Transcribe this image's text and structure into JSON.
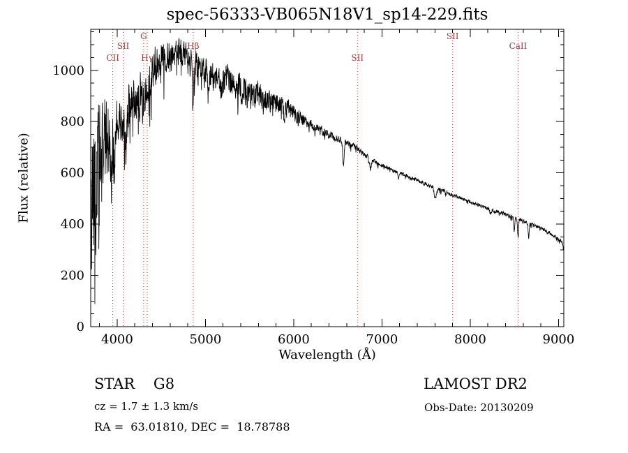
{
  "page": {
    "background": "#ffffff"
  },
  "chart_data": {
    "type": "line",
    "title": "spec-56333-VB065N18V1_sp14-229.fits",
    "xlabel": "Wavelength (Å)",
    "ylabel": "Flux (relative)",
    "xlim": [
      3700,
      9060
    ],
    "ylim": [
      0,
      1160
    ],
    "x_ticks": [
      4000,
      5000,
      6000,
      7000,
      8000,
      9000
    ],
    "y_ticks": [
      0,
      200,
      400,
      600,
      800,
      1000
    ],
    "x_minor_step": 200,
    "y_minor_step": 50,
    "grid": false,
    "legend": "none",
    "line_color": "#000000",
    "frame_color": "#000000",
    "spectral_line_color": "#9a3b3b",
    "spectral_lines": [
      {
        "label": "CII",
        "wavelength": 3950,
        "row": 2
      },
      {
        "label": "SII",
        "wavelength": 4068,
        "row": 1
      },
      {
        "label": "G",
        "wavelength": 4300,
        "row": 0
      },
      {
        "label": "Hγ",
        "wavelength": 4340,
        "row": 2
      },
      {
        "label": "Hβ",
        "wavelength": 4861,
        "row": 1
      },
      {
        "label": "SII",
        "wavelength": 6722,
        "row": 2
      },
      {
        "label": "SII",
        "wavelength": 7800,
        "row": 0
      },
      {
        "label": "CaII",
        "wavelength": 8542,
        "row": 1
      }
    ],
    "continuum": [
      [
        3700,
        430
      ],
      [
        3750,
        520
      ],
      [
        3800,
        620
      ],
      [
        3850,
        700
      ],
      [
        3900,
        740
      ],
      [
        4000,
        790
      ],
      [
        4100,
        830
      ],
      [
        4200,
        880
      ],
      [
        4300,
        930
      ],
      [
        4400,
        1010
      ],
      [
        4500,
        1050
      ],
      [
        4600,
        1070
      ],
      [
        4700,
        1075
      ],
      [
        4800,
        1045
      ],
      [
        4900,
        1010
      ],
      [
        5000,
        990
      ],
      [
        5100,
        965
      ],
      [
        5200,
        950
      ],
      [
        5300,
        955
      ],
      [
        5400,
        930
      ],
      [
        5500,
        910
      ],
      [
        5600,
        895
      ],
      [
        5700,
        885
      ],
      [
        5800,
        875
      ],
      [
        5900,
        855
      ],
      [
        6000,
        835
      ],
      [
        6100,
        805
      ],
      [
        6200,
        785
      ],
      [
        6300,
        765
      ],
      [
        6400,
        748
      ],
      [
        6500,
        733
      ],
      [
        6600,
        718
      ],
      [
        6700,
        700
      ],
      [
        6800,
        672
      ],
      [
        6900,
        650
      ],
      [
        7000,
        630
      ],
      [
        7100,
        615
      ],
      [
        7200,
        600
      ],
      [
        7300,
        585
      ],
      [
        7400,
        570
      ],
      [
        7500,
        556
      ],
      [
        7600,
        542
      ],
      [
        7700,
        528
      ],
      [
        7800,
        514
      ],
      [
        7900,
        500
      ],
      [
        8000,
        487
      ],
      [
        8100,
        474
      ],
      [
        8200,
        462
      ],
      [
        8300,
        450
      ],
      [
        8400,
        438
      ],
      [
        8500,
        425
      ],
      [
        8600,
        413
      ],
      [
        8700,
        398
      ],
      [
        8800,
        383
      ],
      [
        8900,
        365
      ],
      [
        8960,
        352
      ],
      [
        9000,
        342
      ],
      [
        9030,
        335
      ],
      [
        9045,
        328
      ],
      [
        9056,
        298
      ]
    ],
    "noise_amplitude": [
      [
        3700,
        330
      ],
      [
        3750,
        330
      ],
      [
        3820,
        260
      ],
      [
        3900,
        170
      ],
      [
        4000,
        110
      ],
      [
        4150,
        120
      ],
      [
        4300,
        110
      ],
      [
        4450,
        90
      ],
      [
        4600,
        55
      ],
      [
        4750,
        65
      ],
      [
        4900,
        70
      ],
      [
        5100,
        65
      ],
      [
        5300,
        75
      ],
      [
        5500,
        70
      ],
      [
        5700,
        55
      ],
      [
        5900,
        45
      ],
      [
        6050,
        35
      ],
      [
        6200,
        22
      ],
      [
        6400,
        18
      ],
      [
        6600,
        16
      ],
      [
        6800,
        13
      ],
      [
        7000,
        11
      ],
      [
        7300,
        9
      ],
      [
        7600,
        9
      ],
      [
        8000,
        8
      ],
      [
        8400,
        9
      ],
      [
        8800,
        8
      ],
      [
        9060,
        8
      ]
    ],
    "absorption_dips": [
      {
        "wl": 3933,
        "depth": 180,
        "width": 9
      },
      {
        "wl": 3968,
        "depth": 150,
        "width": 8
      },
      {
        "wl": 4101,
        "depth": 160,
        "width": 8
      },
      {
        "wl": 4340,
        "depth": 130,
        "width": 8
      },
      {
        "wl": 4861,
        "depth": 120,
        "width": 8
      },
      {
        "wl": 5172,
        "depth": 45,
        "width": 8
      },
      {
        "wl": 5890,
        "depth": 35,
        "width": 8
      },
      {
        "wl": 6563,
        "depth": 95,
        "width": 8
      },
      {
        "wl": 6870,
        "depth": 40,
        "width": 10
      },
      {
        "wl": 7190,
        "depth": 20,
        "width": 10
      },
      {
        "wl": 7605,
        "depth": 45,
        "width": 12
      },
      {
        "wl": 8230,
        "depth": 18,
        "width": 10
      },
      {
        "wl": 8498,
        "depth": 55,
        "width": 5
      },
      {
        "wl": 8542,
        "depth": 70,
        "width": 6
      },
      {
        "wl": 8662,
        "depth": 55,
        "width": 6
      }
    ],
    "noise_seed": 1234,
    "sample_step": 2.5
  },
  "footer": {
    "object_type": "STAR    G8",
    "survey": "LAMOST DR2",
    "cz": "cz = 1.7 ± 1.3 km/s",
    "obs_date": "Obs-Date: 20130209",
    "ra_dec": "RA =  63.01810, DEC =  18.78788"
  }
}
